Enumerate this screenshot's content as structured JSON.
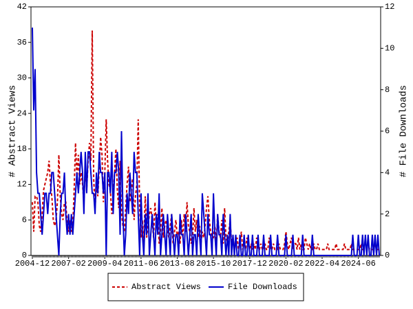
{
  "chart_data": {
    "type": "line",
    "categories": [
      "2004-12",
      null,
      null,
      null,
      null,
      null,
      null,
      null,
      null,
      null,
      null,
      null,
      null,
      null,
      null,
      null,
      null,
      null,
      null,
      null,
      null,
      null,
      null,
      null,
      null,
      null,
      "2007-02",
      null,
      null,
      null,
      null,
      null,
      null,
      null,
      null,
      null,
      null,
      null,
      null,
      null,
      null,
      null,
      null,
      null,
      null,
      null,
      null,
      null,
      null,
      null,
      null,
      null,
      "2009-04",
      null,
      null,
      null,
      null,
      null,
      null,
      null,
      null,
      null,
      null,
      null,
      null,
      null,
      null,
      null,
      null,
      null,
      null,
      null,
      null,
      null,
      null,
      null,
      null,
      null,
      "2011-06",
      null,
      null,
      null,
      null,
      null,
      null,
      null,
      null,
      null,
      null,
      null,
      null,
      null,
      null,
      null,
      null,
      null,
      null,
      null,
      null,
      null,
      null,
      null,
      null,
      null,
      "2013-08",
      null,
      null,
      null,
      null,
      null,
      null,
      null,
      null,
      null,
      null,
      null,
      null,
      null,
      null,
      null,
      null,
      null,
      null,
      null,
      null,
      null,
      null,
      null,
      null,
      null,
      "2015-10",
      null,
      null,
      null,
      null,
      null,
      null,
      null,
      null,
      null,
      null,
      null,
      null,
      null,
      null,
      null,
      null,
      null,
      null,
      null,
      null,
      null,
      null,
      null,
      null,
      null,
      "2017-12",
      null,
      null,
      null,
      null,
      null,
      null,
      null,
      null,
      null,
      null,
      null,
      null,
      null,
      null,
      null,
      null,
      null,
      null,
      null,
      null,
      null,
      null,
      null,
      null,
      null,
      "2020-02",
      null,
      null,
      null,
      null,
      null,
      null,
      null,
      null,
      null,
      null,
      null,
      null,
      null,
      null,
      null,
      null,
      null,
      null,
      null,
      null,
      null,
      null,
      null,
      null,
      null,
      "2022-04",
      null,
      null,
      null,
      null,
      null,
      null,
      null,
      null,
      null,
      null,
      null,
      null,
      null,
      null,
      null,
      null,
      null,
      null,
      null,
      null,
      null,
      null,
      null,
      null,
      null,
      "2024-06",
      null,
      null,
      null,
      null,
      null,
      null,
      null,
      null,
      null,
      null,
      null,
      null,
      null,
      null,
      null
    ],
    "ylabel": "# Abstract Views",
    "y2label": "# File Downloads",
    "ylim": [
      0,
      42
    ],
    "yticks": [
      0,
      6,
      12,
      18,
      24,
      30,
      36,
      42
    ],
    "y2lim": [
      0,
      12
    ],
    "y2ticks": [
      0,
      2,
      4,
      6,
      8,
      10,
      12
    ],
    "legend": "bottom",
    "series": [
      {
        "name": "Abstract Views",
        "color": "#cc0000",
        "style": "dashed",
        "values": [
          9,
          4,
          10,
          10,
          9,
          5,
          4,
          7,
          11,
          12,
          13,
          14,
          16,
          12,
          10,
          6,
          5,
          6,
          9,
          17,
          10,
          7,
          6,
          9,
          9,
          5,
          4,
          6,
          4,
          5,
          11,
          19,
          13,
          17,
          12,
          14,
          12,
          9,
          15,
          11,
          16,
          19,
          16,
          38,
          13,
          8,
          12,
          10,
          15,
          20,
          17,
          9,
          14,
          23,
          16,
          12,
          11,
          7,
          10,
          14,
          18,
          11,
          8,
          16,
          7,
          5,
          4,
          8,
          12,
          15,
          9,
          11,
          13,
          6,
          10,
          12,
          23,
          8,
          3,
          6,
          2,
          10,
          3,
          5,
          7,
          8,
          6,
          3,
          9,
          5,
          7,
          2,
          4,
          8,
          3,
          5,
          6,
          4,
          3,
          5,
          7,
          2,
          4,
          6,
          3,
          4,
          2,
          6,
          3,
          7,
          4,
          9,
          5,
          4,
          2,
          3,
          8,
          4,
          6,
          3,
          5,
          2,
          4,
          3,
          5,
          8,
          10,
          6,
          4,
          3,
          3,
          5,
          2,
          7,
          4,
          3,
          6,
          2,
          8,
          3,
          2,
          4,
          6,
          2,
          3,
          1,
          2,
          3,
          1,
          2,
          4,
          1,
          2,
          1,
          3,
          2,
          1,
          2,
          1,
          2,
          1,
          3,
          1,
          1,
          2,
          1,
          1,
          2,
          1,
          1,
          3,
          1,
          1,
          2,
          1,
          1,
          1,
          2,
          1,
          1,
          1,
          2,
          4,
          2,
          1,
          2,
          3,
          1,
          2,
          2,
          1,
          3,
          1,
          2,
          1,
          1,
          3,
          2,
          1,
          2,
          1,
          1,
          2,
          1,
          1,
          2,
          1,
          1,
          1,
          1,
          1,
          1,
          2,
          1,
          1,
          1,
          1,
          1,
          2,
          1,
          1,
          1,
          1,
          1,
          2,
          1,
          1,
          1,
          1,
          2,
          1,
          1,
          1,
          1,
          1,
          1,
          2,
          1,
          1,
          1,
          1,
          2,
          1,
          1,
          1,
          1,
          2,
          1,
          1,
          1
        ]
      },
      {
        "name": "File Downloads",
        "color": "#0000cc",
        "style": "solid",
        "axis": "y2",
        "values": [
          11,
          7,
          9,
          4,
          3,
          3,
          2,
          1,
          2,
          3,
          3,
          2,
          3,
          3,
          4,
          4,
          3,
          2,
          1,
          0,
          2,
          3,
          3,
          4,
          2,
          1,
          2,
          1,
          2,
          1,
          2,
          3,
          4,
          3,
          4,
          5,
          4,
          2,
          5,
          3,
          5,
          5,
          4,
          3,
          3,
          2,
          4,
          3,
          5,
          4,
          4,
          3,
          4,
          0,
          4,
          4,
          3,
          5,
          2,
          4,
          4,
          5,
          4,
          1,
          6,
          2,
          0,
          1,
          3,
          2,
          4,
          3,
          2,
          5,
          4,
          4,
          2,
          0,
          3,
          1,
          0,
          2,
          1,
          3,
          0,
          1,
          2,
          1,
          0,
          2,
          1,
          3,
          0,
          1,
          2,
          1,
          0,
          2,
          1,
          0,
          2,
          1,
          0,
          1,
          1,
          0,
          2,
          1,
          1,
          0,
          2,
          1,
          0,
          1,
          2,
          0,
          1,
          1,
          0,
          2,
          1,
          0,
          3,
          2,
          1,
          0,
          2,
          1,
          1,
          0,
          3,
          1,
          0,
          2,
          1,
          1,
          0,
          2,
          1,
          0,
          1,
          0,
          2,
          0,
          1,
          0,
          1,
          0,
          0,
          1,
          0,
          0,
          1,
          0,
          0,
          1,
          0,
          0,
          1,
          0,
          0,
          0,
          1,
          0,
          0,
          0,
          1,
          0,
          0,
          0,
          0,
          1,
          0,
          0,
          0,
          0,
          1,
          0,
          0,
          0,
          0,
          0,
          1,
          0,
          0,
          0,
          0,
          1,
          0,
          0,
          0,
          0,
          0,
          0,
          1,
          0,
          0,
          0,
          0,
          0,
          0,
          1,
          0,
          0,
          0,
          0,
          0,
          0,
          0,
          0,
          0,
          0,
          0,
          0,
          0,
          0,
          0,
          0,
          0,
          0,
          0,
          0,
          0,
          0,
          0,
          0,
          0,
          0,
          0,
          0,
          1,
          0,
          0,
          0,
          1,
          0,
          0,
          1,
          0,
          1,
          0,
          1,
          0,
          0,
          1,
          0,
          1,
          0,
          1,
          0
        ]
      }
    ]
  }
}
